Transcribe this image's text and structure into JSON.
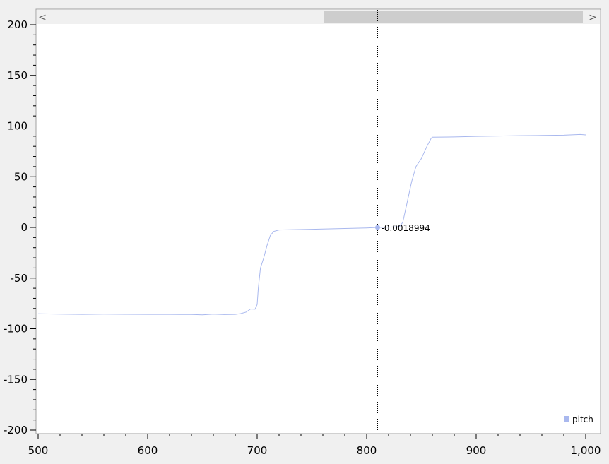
{
  "scrollbar": {
    "left_arrow": "<",
    "right_arrow": ">",
    "thumb_start_fraction": 0.51,
    "thumb_end_fraction": 0.995
  },
  "cursor": {
    "x": 810,
    "y": -0.0018994,
    "label": "-0.0018994"
  },
  "colors": {
    "series": "#a9b8ee",
    "plot_bg": "#ffffff",
    "window_bg": "#f0f0f0"
  },
  "chart_data": {
    "type": "line",
    "xlim": [
      500,
      1000
    ],
    "ylim": [
      -200,
      200
    ],
    "x_ticks": [
      500,
      600,
      700,
      800,
      900,
      1000
    ],
    "x_tick_labels": [
      "500",
      "600",
      "700",
      "800",
      "900",
      "1,000"
    ],
    "y_ticks": [
      200,
      150,
      100,
      50,
      0,
      -50,
      -100,
      -150,
      -200
    ],
    "y_tick_labels": [
      "200",
      "150",
      "100",
      "50",
      "0",
      "-50",
      "-100",
      "-150",
      "-200"
    ],
    "legend": {
      "position": "bottom-right",
      "entries": [
        "pitch"
      ]
    },
    "series": [
      {
        "name": "pitch",
        "points": [
          [
            500,
            -85.2
          ],
          [
            520,
            -85.5
          ],
          [
            540,
            -85.8
          ],
          [
            560,
            -85.6
          ],
          [
            580,
            -85.7
          ],
          [
            600,
            -85.8
          ],
          [
            620,
            -85.8
          ],
          [
            640,
            -85.9
          ],
          [
            650,
            -86.3
          ],
          [
            660,
            -85.5
          ],
          [
            670,
            -86.0
          ],
          [
            680,
            -85.8
          ],
          [
            685,
            -85.0
          ],
          [
            690,
            -83.5
          ],
          [
            694,
            -80.5
          ],
          [
            698,
            -80.8
          ],
          [
            700,
            -76
          ],
          [
            701,
            -60
          ],
          [
            703,
            -40
          ],
          [
            706,
            -30
          ],
          [
            709,
            -18
          ],
          [
            712,
            -8
          ],
          [
            715,
            -4
          ],
          [
            720,
            -2.5
          ],
          [
            730,
            -2.2
          ],
          [
            750,
            -1.8
          ],
          [
            770,
            -1.3
          ],
          [
            790,
            -0.8
          ],
          [
            800,
            -0.5
          ],
          [
            810,
            -0.0018994
          ],
          [
            820,
            0.3
          ],
          [
            830,
            0.8
          ],
          [
            833,
            5
          ],
          [
            837,
            25
          ],
          [
            841,
            45
          ],
          [
            845,
            60
          ],
          [
            850,
            68
          ],
          [
            855,
            80
          ],
          [
            859,
            88
          ],
          [
            860,
            89
          ],
          [
            880,
            89.3
          ],
          [
            900,
            89.8
          ],
          [
            920,
            90.2
          ],
          [
            940,
            90.5
          ],
          [
            960,
            90.7
          ],
          [
            980,
            91
          ],
          [
            995,
            91.7
          ],
          [
            1000,
            91.3
          ]
        ]
      }
    ]
  }
}
